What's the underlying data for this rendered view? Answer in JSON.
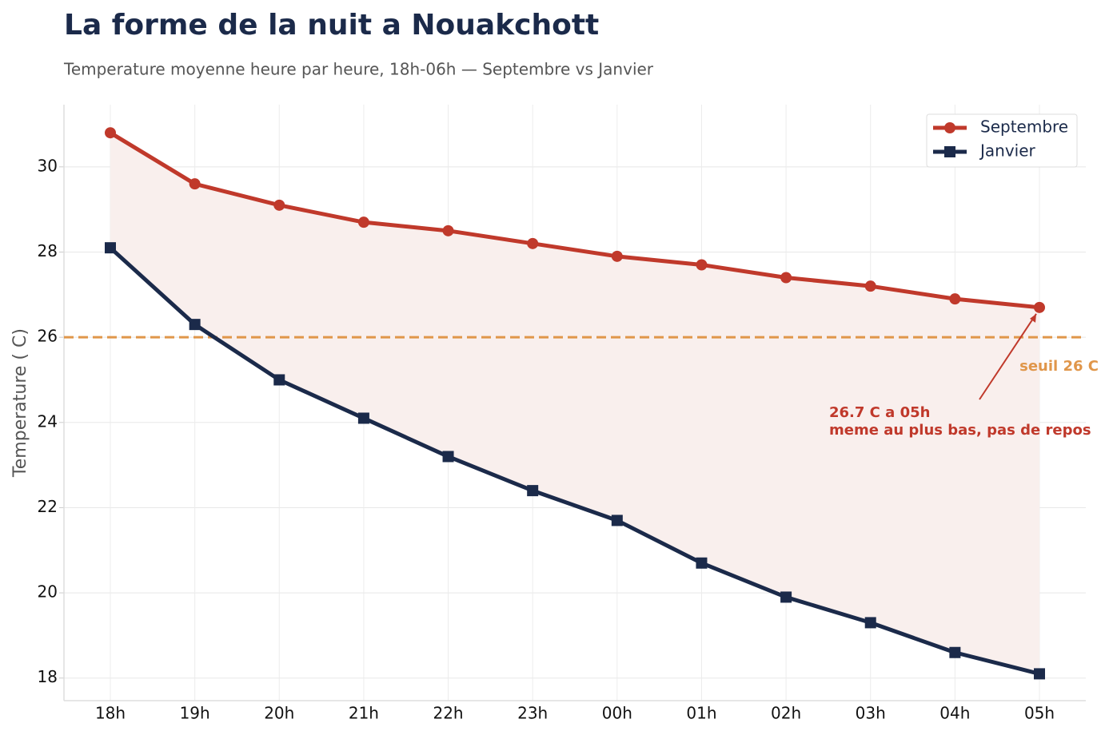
{
  "chart_data": {
    "type": "line",
    "title": "La forme de la nuit a Nouakchott",
    "subtitle": "Temperature moyenne heure par heure, 18h-06h — Septembre vs Janvier",
    "y_label": "Temperature ( C)",
    "categories": [
      "18h",
      "19h",
      "20h",
      "21h",
      "22h",
      "23h",
      "00h",
      "01h",
      "02h",
      "03h",
      "04h",
      "05h"
    ],
    "series": [
      {
        "name": "Septembre",
        "color": "#c0392b",
        "marker": "circle",
        "values": [
          30.8,
          29.6,
          29.1,
          28.7,
          28.5,
          28.2,
          27.9,
          27.7,
          27.4,
          27.2,
          26.9,
          26.7
        ]
      },
      {
        "name": "Janvier",
        "color": "#1b2a4a",
        "marker": "square",
        "values": [
          28.1,
          26.3,
          25.0,
          24.1,
          23.2,
          22.4,
          21.7,
          20.7,
          19.9,
          19.3,
          18.6,
          18.1
        ]
      }
    ],
    "fill_between": true,
    "fill_color": "#f9efed",
    "threshold": {
      "value": 26,
      "label": "seuil 26 C",
      "color": "#e0964a"
    },
    "annotation": {
      "lines": [
        "26.7 C a 05h",
        "meme au plus bas, pas de repos"
      ],
      "color": "#c0392b"
    },
    "ylim": [
      17.47,
      31.46
    ],
    "yticks": [
      18,
      20,
      22,
      24,
      26,
      28,
      30
    ],
    "grid": true,
    "legend": "upper right"
  }
}
